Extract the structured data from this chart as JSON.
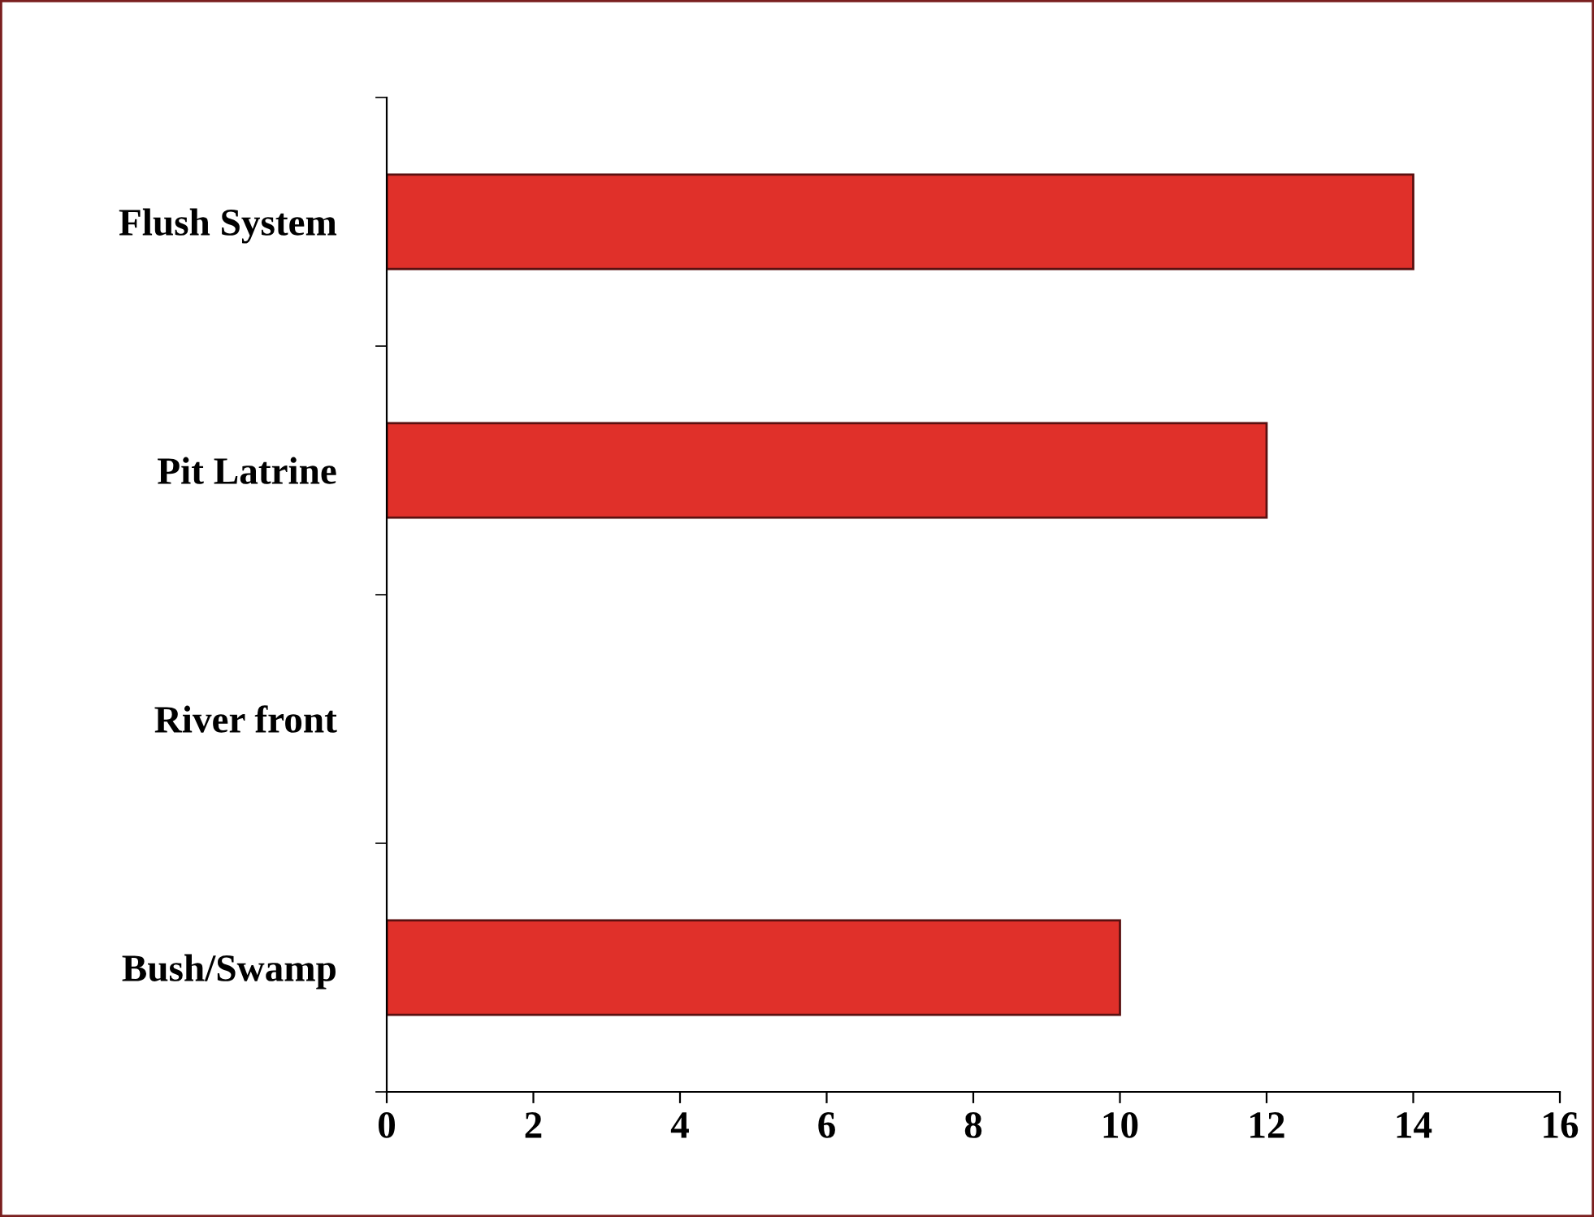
{
  "chart_data": {
    "type": "bar",
    "orientation": "horizontal",
    "categories": [
      "Flush System",
      "Pit Latrine",
      "River front",
      "Bush/Swamp"
    ],
    "values": [
      14,
      12,
      0,
      10
    ],
    "color": "#e0302a",
    "xlim": [
      0,
      16
    ],
    "xticks": [
      0,
      2,
      4,
      6,
      8,
      10,
      12,
      14,
      16
    ],
    "grid": false,
    "legend": false
  }
}
